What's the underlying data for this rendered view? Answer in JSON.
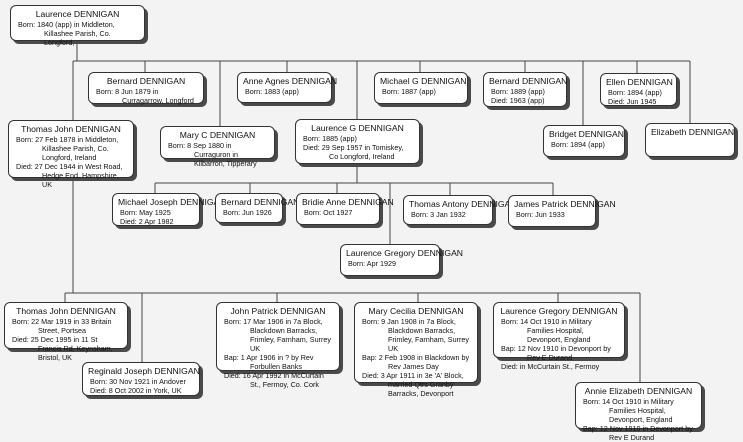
{
  "people": [
    {
      "name": "Laurence DENNIGAN",
      "details": [
        "Born: 1840 (app) in Middleton, Killashee Parish, Co. Longford,"
      ]
    },
    {
      "name": "Bernard DENNIGAN",
      "details": [
        "Born: 8 Jun 1879 in Curragarrow, Longford"
      ]
    },
    {
      "name": "Anne Agnes DENNIGAN",
      "details": [
        "Born: 1883 (app)"
      ]
    },
    {
      "name": "Michael G DENNIGAN",
      "details": [
        "Born: 1887 (app)"
      ]
    },
    {
      "name": "Bernard DENNIGAN",
      "details": [
        "Born: 1889 (app)",
        "Died: 1963 (app)"
      ]
    },
    {
      "name": "Ellen DENNIGAN",
      "details": [
        "Born: 1894 (app)",
        "Died: Jun 1945"
      ]
    },
    {
      "name": "Thomas John DENNIGAN",
      "details": [
        "Born: 27 Feb 1878 in Middleton, Killashee Parish, Co. Longford, Ireland",
        "Died: 27 Dec 1944 in West Road, Hedge End, Hampshire, UK"
      ]
    },
    {
      "name": "Mary C DENNIGAN",
      "details": [
        "Born: 8 Sep 1880 in Curraguron in Kilbarron, Tipperary"
      ]
    },
    {
      "name": "Laurence G DENNIGAN",
      "details": [
        "Born: 1885 (app)",
        "Died: 29 Sep 1957 in Tomiskey, Co Longford, Ireland"
      ]
    },
    {
      "name": "Bridget DENNIGAN",
      "details": [
        "Born: 1894 (app)"
      ]
    },
    {
      "name": "Elizabeth DENNIGAN",
      "details": []
    },
    {
      "name": "Michael Joseph DENNIGAN",
      "details": [
        "Born: May 1925",
        "Died: 2 Apr 1982"
      ]
    },
    {
      "name": "Bernard DENNIGAN",
      "details": [
        "Born: Jun 1926"
      ]
    },
    {
      "name": "Bridie Anne DENNIGAN",
      "details": [
        "Born: Oct 1927"
      ]
    },
    {
      "name": "Thomas Antony DENNIGAN",
      "details": [
        "Born: 3 Jan 1932"
      ]
    },
    {
      "name": "James Patrick DENNIGAN",
      "details": [
        "Born: Jun 1933"
      ]
    },
    {
      "name": "Laurence Gregory DENNIGAN",
      "details": [
        "Born: Apr 1929"
      ]
    },
    {
      "name": "Thomas John DENNIGAN",
      "details": [
        "Born: 22 Mar 1919 in 33 Britain Street, Portsea",
        "Died: 25 Dec 1995 in 11 St Francis Rd, Keynsham, Bristol, UK"
      ]
    },
    {
      "name": "Reginald Joseph DENNIGAN",
      "details": [
        "Born: 30 Nov 1921 in Andover",
        "Died: 8 Oct 2002 in York, UK"
      ]
    },
    {
      "name": "John Patrick DENNIGAN",
      "details": [
        "Born: 17 Mar 1906 in 7a Block, Blackdown Barracks, Frimley, Farnham, Surrey UK",
        "Bap: 1 Apr 1906 in ? by Rev Forbullen Banks",
        "Died: 16 Apr 1992 in McCurtain St., Fermoy, Co. Cork"
      ]
    },
    {
      "name": "Mary Cecilia DENNIGAN",
      "details": [
        "Born: 9 Jan 1908 in 7a Block, Blackdown Barracks, Frimley, Farnham, Surrey UK",
        "Bap: 2 Feb 1908 in Blackdown by Rev James Day",
        "Died: 3 Apr 1911 in 3e 'A' Block, married Qtrs Granby Barracks, Devonport"
      ]
    },
    {
      "name": "Laurence Gregory DENNIGAN",
      "details": [
        "Born: 14 Oct 1910 in Military Families Hospital, Devonport, England",
        "Bap: 12 Nov 1910 in Devonport by Rev E Durand",
        "Died:  in McCurtain St., Fermoy"
      ]
    },
    {
      "name": "Annie Elizabeth DENNIGAN",
      "details": [
        "Born: 14 Oct 1910 in Military Families Hospital, Devonport, England",
        "Bap: 12 Nov 1910 in Devonport by Rev E Durand"
      ]
    }
  ]
}
